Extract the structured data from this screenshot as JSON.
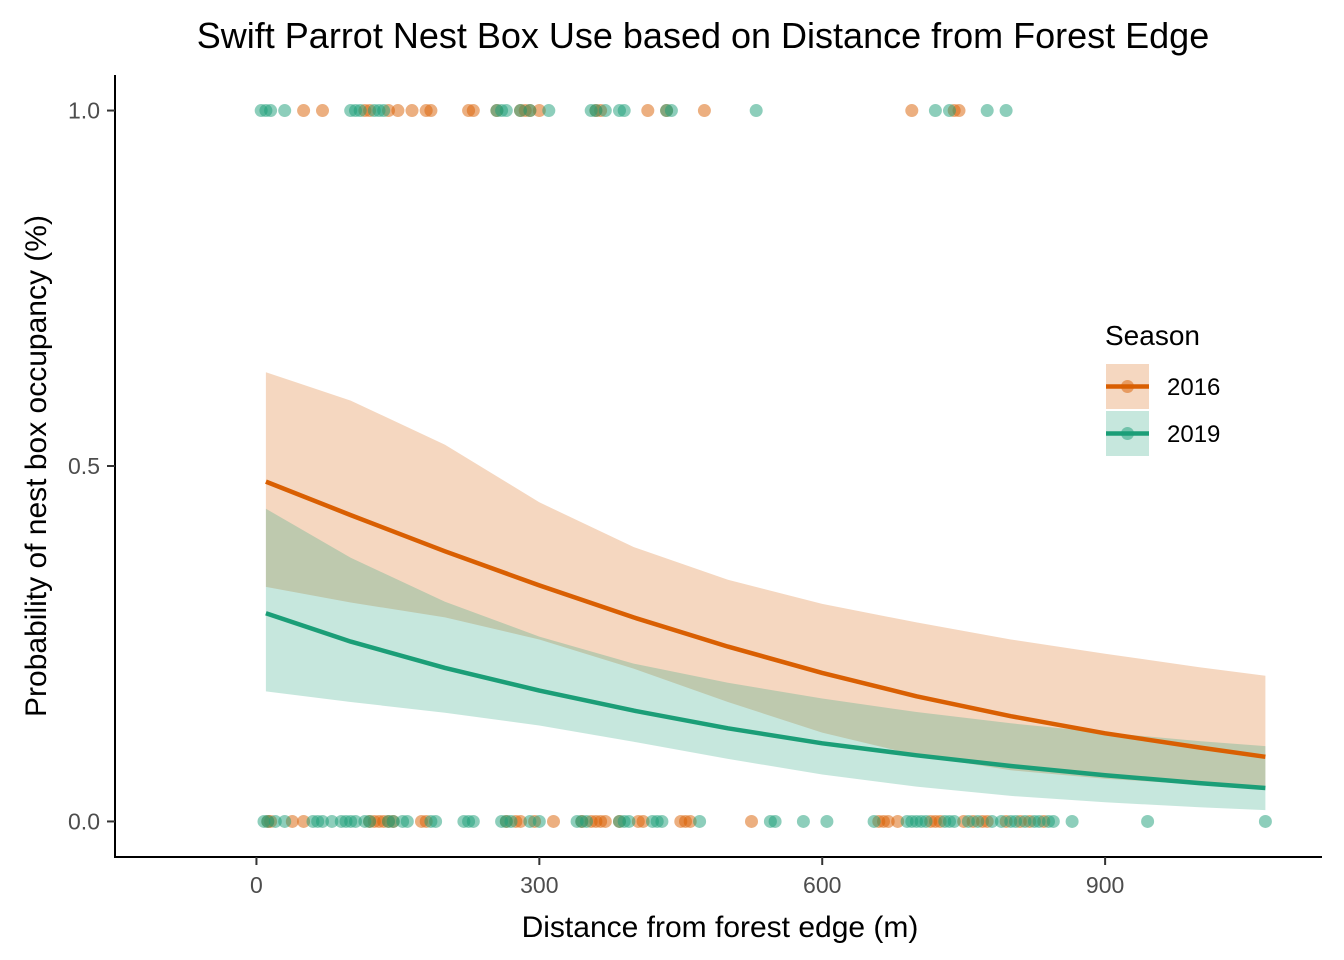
{
  "chart_data": {
    "type": "line",
    "title": "Swift Parrot Nest Box Use based on Distance from Forest Edge",
    "xlabel": "Distance from forest edge (m)",
    "ylabel": "Probability of nest box occupancy (%)",
    "xlim": [
      -150,
      1130
    ],
    "ylim": [
      -0.05,
      1.05
    ],
    "x_ticks": [
      0,
      300,
      600,
      900
    ],
    "x_tick_labels": [
      "0",
      "300",
      "600",
      "900"
    ],
    "y_ticks": [
      0.0,
      0.5,
      1.0
    ],
    "y_tick_labels": [
      "0.0",
      "0.5",
      "1.0"
    ],
    "grid": false,
    "legend": {
      "title": "Season",
      "position": "right"
    },
    "series": [
      {
        "name": "2016",
        "color": "#D95F02",
        "fit": {
          "x": [
            10,
            100,
            200,
            300,
            400,
            500,
            600,
            700,
            800,
            900,
            1000,
            1070
          ],
          "y": [
            0.478,
            0.431,
            0.38,
            0.332,
            0.287,
            0.246,
            0.209,
            0.176,
            0.148,
            0.124,
            0.104,
            0.091
          ],
          "lower": [
            0.33,
            0.308,
            0.287,
            0.256,
            0.215,
            0.168,
            0.125,
            0.093,
            0.072,
            0.06,
            0.052,
            0.05
          ],
          "upper": [
            0.632,
            0.592,
            0.53,
            0.449,
            0.386,
            0.34,
            0.306,
            0.28,
            0.256,
            0.236,
            0.217,
            0.205
          ]
        },
        "points_y1": [
          50,
          70,
          115,
          120,
          140,
          150,
          165,
          180,
          185,
          225,
          230,
          255,
          280,
          285,
          290,
          300,
          360,
          365,
          415,
          435,
          475,
          695,
          740,
          745
        ],
        "points_y0": [
          12,
          15,
          38,
          50,
          120,
          125,
          130,
          135,
          140,
          145,
          175,
          180,
          265,
          275,
          280,
          295,
          315,
          345,
          355,
          360,
          365,
          370,
          385,
          405,
          410,
          450,
          455,
          460,
          525,
          660,
          665,
          670,
          680,
          715,
          720,
          725,
          750,
          760,
          770,
          775,
          795,
          810,
          820,
          835
        ]
      },
      {
        "name": "2019",
        "color": "#1B9E77",
        "fit": {
          "x": [
            10,
            100,
            200,
            300,
            400,
            500,
            600,
            700,
            800,
            900,
            1000,
            1070
          ],
          "y": [
            0.293,
            0.253,
            0.216,
            0.184,
            0.156,
            0.131,
            0.11,
            0.093,
            0.078,
            0.065,
            0.054,
            0.047
          ],
          "lower": [
            0.183,
            0.168,
            0.153,
            0.135,
            0.112,
            0.088,
            0.066,
            0.049,
            0.036,
            0.027,
            0.02,
            0.016
          ],
          "upper": [
            0.44,
            0.371,
            0.309,
            0.26,
            0.222,
            0.195,
            0.173,
            0.154,
            0.138,
            0.125,
            0.113,
            0.106
          ]
        },
        "points_y1": [
          5,
          10,
          15,
          30,
          100,
          105,
          110,
          125,
          130,
          135,
          255,
          260,
          265,
          280,
          290,
          310,
          355,
          360,
          370,
          385,
          390,
          435,
          440,
          530,
          720,
          735,
          775,
          795
        ],
        "points_y0": [
          8,
          12,
          20,
          30,
          60,
          65,
          70,
          80,
          90,
          95,
          100,
          105,
          115,
          120,
          140,
          145,
          155,
          160,
          185,
          190,
          220,
          225,
          230,
          260,
          265,
          270,
          290,
          300,
          340,
          345,
          350,
          385,
          390,
          395,
          420,
          425,
          430,
          470,
          545,
          550,
          580,
          605,
          655,
          690,
          695,
          700,
          705,
          710,
          730,
          735,
          740,
          755,
          765,
          780,
          790,
          800,
          805,
          815,
          825,
          830,
          840,
          845,
          865,
          945,
          1070
        ]
      }
    ]
  }
}
